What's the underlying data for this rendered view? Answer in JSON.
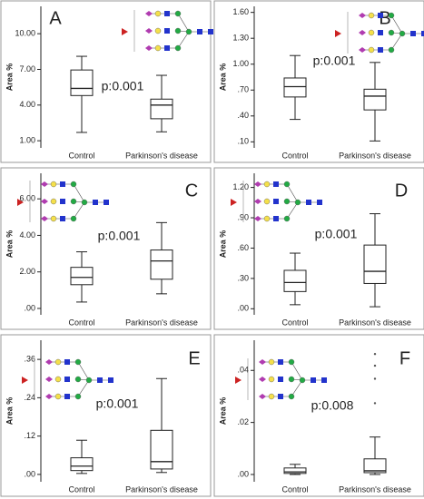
{
  "chart_data": [
    {
      "type": "box",
      "label": "A",
      "annotation": "p:0.001",
      "y_label": "Area %",
      "categories": [
        "Control",
        "Parkinson's disease"
      ],
      "color": "#ffffff",
      "boxes": [
        {
          "min": 1.7,
          "q1": 4.8,
          "median": 5.4,
          "q3": 6.95,
          "max": 8.1
        },
        {
          "min": 1.75,
          "q1": 2.85,
          "median": 4.0,
          "q3": 4.5,
          "max": 6.5
        }
      ],
      "ylim": [
        0.4,
        12.3
      ],
      "yticks": [
        {
          "value": 1,
          "label": "1.00"
        },
        {
          "value": 4,
          "label": "4.00"
        },
        {
          "value": 7,
          "label": "7.00"
        },
        {
          "value": 10,
          "label": "10.00"
        }
      ]
    },
    {
      "type": "box",
      "label": "B",
      "annotation": "p:0.001",
      "y_label": "Area %",
      "categories": [
        "Control",
        "Parkinson's disease"
      ],
      "color": "#ffffff",
      "boxes": [
        {
          "min": 0.36,
          "q1": 0.62,
          "median": 0.74,
          "q3": 0.84,
          "max": 1.1
        },
        {
          "min": 0.11,
          "q1": 0.47,
          "median": 0.63,
          "q3": 0.71,
          "max": 1.02
        }
      ],
      "ylim": [
        0.03,
        1.67
      ],
      "yticks": [
        {
          "value": 0.1,
          "label": ".10"
        },
        {
          "value": 0.4,
          "label": ".40"
        },
        {
          "value": 0.7,
          "label": ".70"
        },
        {
          "value": 1,
          "label": "1.00"
        },
        {
          "value": 1.3,
          "label": "1.30"
        },
        {
          "value": 1.6,
          "label": "1.60"
        }
      ]
    },
    {
      "type": "box",
      "label": "C",
      "annotation": "p:0.001",
      "y_label": "Area %",
      "categories": [
        "Control",
        "Parkinson's disease"
      ],
      "color": "#ffffff",
      "boxes": [
        {
          "min": 0.35,
          "q1": 1.3,
          "median": 1.7,
          "q3": 2.25,
          "max": 3.1
        },
        {
          "min": 0.8,
          "q1": 1.6,
          "median": 2.6,
          "q3": 3.2,
          "max": 4.7
        }
      ],
      "ylim": [
        -0.35,
        7.4
      ],
      "yticks": [
        {
          "value": 0,
          "label": ".00"
        },
        {
          "value": 2,
          "label": "2.00"
        },
        {
          "value": 4,
          "label": "4.00"
        },
        {
          "value": 6,
          "label": "6.00"
        }
      ]
    },
    {
      "type": "box",
      "label": "D",
      "annotation": "p:0.001",
      "y_label": "Area %",
      "categories": [
        "Control",
        "Parkinson's disease"
      ],
      "color": "#ffffff",
      "boxes": [
        {
          "min": 0.04,
          "q1": 0.17,
          "median": 0.26,
          "q3": 0.38,
          "max": 0.55
        },
        {
          "min": 0.02,
          "q1": 0.25,
          "median": 0.37,
          "q3": 0.63,
          "max": 0.94
        }
      ],
      "ylim": [
        -0.06,
        1.34
      ],
      "yticks": [
        {
          "value": 0,
          "label": ".00"
        },
        {
          "value": 0.3,
          "label": ".30"
        },
        {
          "value": 0.6,
          "label": ".60"
        },
        {
          "value": 0.9,
          "label": ".90"
        },
        {
          "value": 1.2,
          "label": "1.20"
        }
      ]
    },
    {
      "type": "box",
      "label": "E",
      "annotation": "p:0.001",
      "y_label": "Area %",
      "categories": [
        "Control",
        "Parkinson's disease"
      ],
      "color": "#ffffff",
      "boxes": [
        {
          "min": 0.003,
          "q1": 0.012,
          "median": 0.026,
          "q3": 0.052,
          "max": 0.107
        },
        {
          "min": 0.006,
          "q1": 0.017,
          "median": 0.04,
          "q3": 0.138,
          "max": 0.3
        }
      ],
      "ylim": [
        -0.023,
        0.42
      ],
      "yticks": [
        {
          "value": 0,
          "label": ".00"
        },
        {
          "value": 0.12,
          "label": ".12"
        },
        {
          "value": 0.24,
          "label": ".24"
        },
        {
          "value": 0.36,
          "label": ".36"
        }
      ]
    },
    {
      "type": "box",
      "label": "F",
      "annotation": "p:0.008",
      "y_label": "Area %",
      "categories": [
        "Control",
        "Parkinson's disease"
      ],
      "color": "#ffffff",
      "boxes": [
        {
          "min": 0,
          "q1": 0.0004,
          "median": 0.001,
          "q3": 0.0025,
          "max": 0.0039
        },
        {
          "min": 0,
          "q1": 0.0007,
          "median": 0.0014,
          "q3": 0.006,
          "max": 0.0144,
          "outliers": [
            0.0463,
            0.0418,
            0.0368,
            0.0274
          ]
        }
      ],
      "ylim": [
        -0.0028,
        0.0516
      ],
      "yticks": [
        {
          "value": 0,
          "label": ".00"
        },
        {
          "value": 0.02,
          "label": ".02"
        },
        {
          "value": 0.04,
          "label": ".04"
        }
      ]
    }
  ]
}
